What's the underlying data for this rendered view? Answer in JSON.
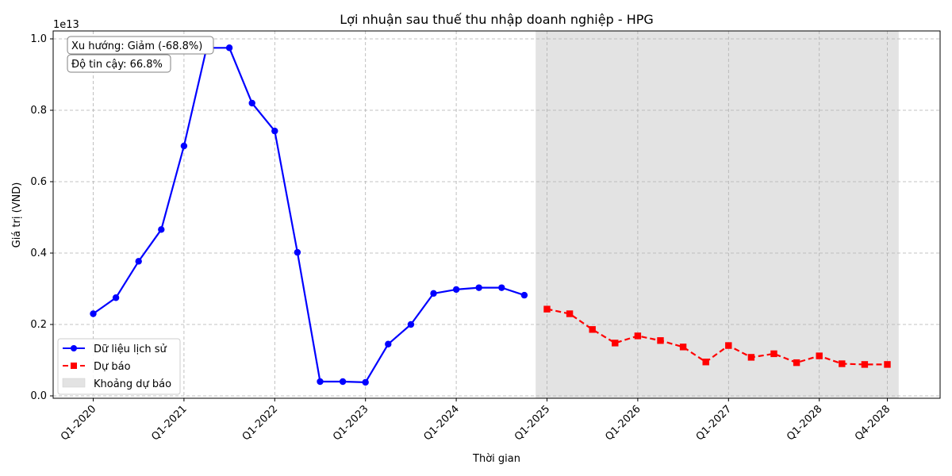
{
  "chart_data": {
    "type": "line",
    "title": "Lợi nhuận sau thuế thu nhập doanh nghiệp - HPG",
    "xlabel": "Thời gian",
    "ylabel": "Giá trị (VND)",
    "y_offset_label": "1e13",
    "ylim": [
      0.0,
      1.0
    ],
    "y_ticks": [
      "0.0",
      "0.2",
      "0.4",
      "0.6",
      "0.8",
      "1.0"
    ],
    "x_ticks": [
      {
        "label": "Q1-2020",
        "q": 0
      },
      {
        "label": "Q1-2021",
        "q": 4
      },
      {
        "label": "Q1-2022",
        "q": 8
      },
      {
        "label": "Q1-2023",
        "q": 12
      },
      {
        "label": "Q1-2024",
        "q": 16
      },
      {
        "label": "Q1-2025",
        "q": 20
      },
      {
        "label": "Q1-2026",
        "q": 24
      },
      {
        "label": "Q1-2027",
        "q": 28
      },
      {
        "label": "Q1-2028",
        "q": 32
      },
      {
        "label": "Q4-2028",
        "q": 35
      }
    ],
    "grid": true,
    "legend_position": "lower-left",
    "forecast_region": {
      "start_q": 19.5,
      "end_q": 35.5,
      "label": "Khoảng dự báo",
      "color": "#e3e3e3"
    },
    "series": [
      {
        "name": "Dữ liệu lịch sử",
        "color": "#0000ff",
        "style": "solid",
        "marker": "circle",
        "start_q": 0,
        "values": [
          0.23,
          0.275,
          0.377,
          0.466,
          0.7,
          0.975,
          0.975,
          0.82,
          0.742,
          0.402,
          0.04,
          0.04,
          0.038,
          0.145,
          0.2,
          0.287,
          0.298,
          0.303,
          0.303,
          0.282
        ]
      },
      {
        "name": "Dự báo",
        "color": "#ff0000",
        "style": "dashed",
        "marker": "square",
        "start_q": 20,
        "values": [
          0.243,
          0.23,
          0.186,
          0.148,
          0.168,
          0.155,
          0.137,
          0.095,
          0.141,
          0.108,
          0.118,
          0.093,
          0.112,
          0.09,
          0.088,
          0.088
        ]
      }
    ],
    "annotations": [
      {
        "text": "Xu hướng: Giảm (-68.8%)"
      },
      {
        "text": "Độ tin cậy: 66.8%"
      }
    ]
  }
}
